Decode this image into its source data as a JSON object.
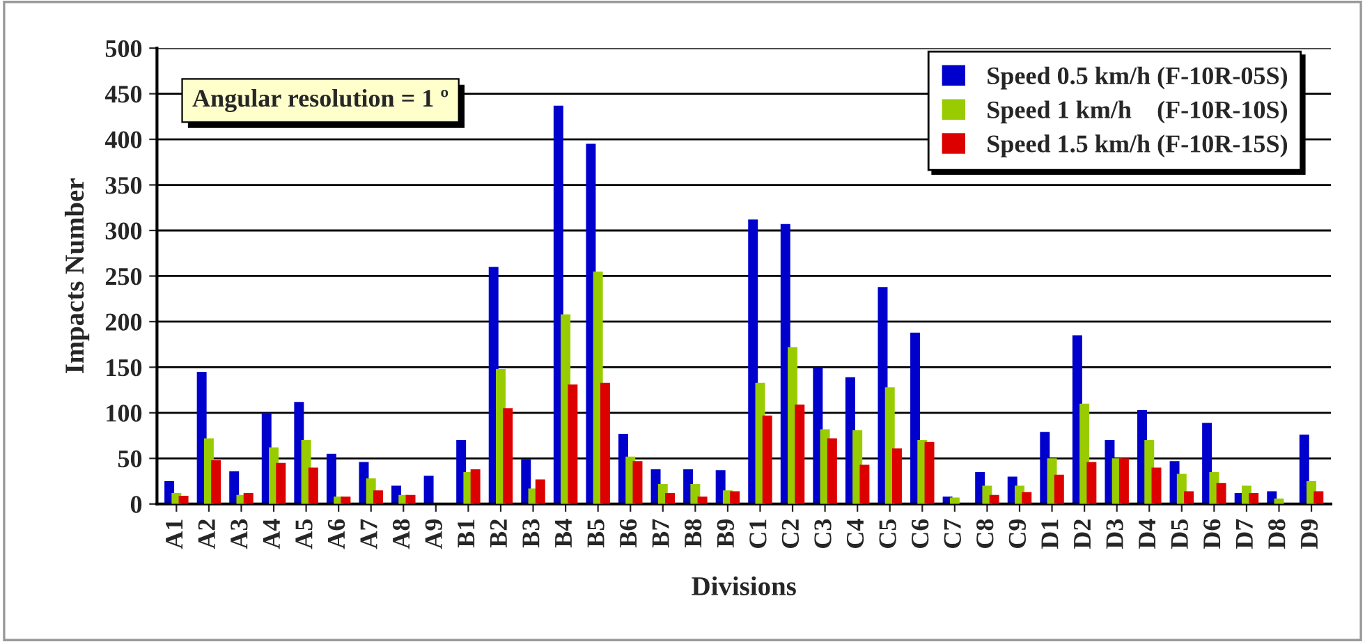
{
  "chart_data": {
    "type": "bar",
    "xlabel": "Divisions",
    "ylabel": "Impacts Number",
    "annotations": [
      "Angular resolution = 1 º"
    ],
    "categories": [
      "A1",
      "A2",
      "A3",
      "A4",
      "A5",
      "A6",
      "A7",
      "A8",
      "A9",
      "B1",
      "B2",
      "B3",
      "B4",
      "B5",
      "B6",
      "B7",
      "B8",
      "B9",
      "C1",
      "C2",
      "C3",
      "C4",
      "C5",
      "C6",
      "C7",
      "C8",
      "C9",
      "D1",
      "D2",
      "D3",
      "D4",
      "D5",
      "D6",
      "D7",
      "D8",
      "D9"
    ],
    "series": [
      {
        "name": "Speed 0.5 km/h (F-10R-05S)",
        "color": "#0000cc",
        "values": [
          25,
          145,
          36,
          100,
          112,
          55,
          46,
          20,
          31,
          70,
          260,
          49,
          437,
          395,
          77,
          38,
          38,
          37,
          312,
          307,
          150,
          139,
          238,
          188,
          8,
          35,
          30,
          79,
          185,
          70,
          103,
          47,
          89,
          12,
          14,
          76
        ]
      },
      {
        "name": "Speed 1 km/h    (F-10R-10S)",
        "color": "#99cc00",
        "values": [
          12,
          72,
          10,
          62,
          70,
          8,
          28,
          10,
          0,
          35,
          148,
          17,
          208,
          255,
          52,
          22,
          22,
          15,
          133,
          172,
          82,
          81,
          128,
          70,
          7,
          20,
          20,
          50,
          110,
          50,
          70,
          33,
          35,
          20,
          6,
          25
        ]
      },
      {
        "name": "Speed 1.5 km/h (F-10R-15S)",
        "color": "#dd0000",
        "values": [
          9,
          48,
          12,
          45,
          40,
          8,
          15,
          10,
          0,
          38,
          105,
          27,
          131,
          133,
          47,
          12,
          8,
          14,
          97,
          109,
          72,
          43,
          61,
          68,
          0,
          10,
          13,
          32,
          46,
          50,
          40,
          14,
          23,
          12,
          0,
          14
        ]
      }
    ],
    "ylim": [
      0,
      500
    ],
    "yticks": [
      0,
      50,
      100,
      150,
      200,
      250,
      300,
      350,
      400,
      450,
      500
    ],
    "grid": "y",
    "legend": "top right"
  }
}
